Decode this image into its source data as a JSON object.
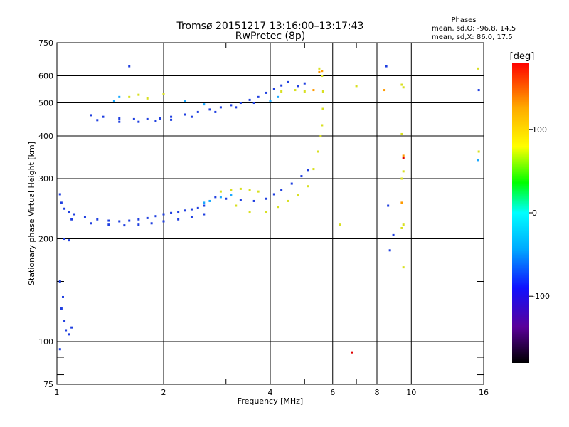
{
  "header": {
    "title_line1": "Tromsø 20151217 13:16:00–13:17:43",
    "title_line2": "RwPretec (8p)"
  },
  "stats": {
    "heading": "Phases",
    "line_o": "mean, sd,O: -96.8, 14.5",
    "line_x": "mean, sd,X: 86.0, 17.5"
  },
  "chart_data": {
    "type": "scatter",
    "xlabel": "Frequency [MHz]",
    "ylabel": "Stationary phase Virtual Height [km]",
    "x_scale": "log",
    "y_scale": "log",
    "xlim": [
      1,
      16
    ],
    "ylim": [
      75,
      750
    ],
    "x_ticks": [
      1,
      2,
      4,
      6,
      8,
      10,
      16
    ],
    "x_tick_labels": [
      "1",
      "2",
      "4",
      "6",
      "8",
      "10",
      "16"
    ],
    "x_minor_ticks": [
      3,
      5,
      7,
      9
    ],
    "y_ticks": [
      75,
      100,
      200,
      300,
      400,
      500,
      600,
      750
    ],
    "y_tick_labels": [
      "75",
      "100",
      "200",
      "300",
      "400",
      "500",
      "600",
      "750"
    ],
    "y_minor_ticks": [
      80,
      90,
      150
    ],
    "grid": true,
    "colorbar": {
      "label": "[deg]",
      "range": [
        -180,
        180
      ],
      "ticks": [
        -100,
        0,
        100
      ],
      "tick_labels": [
        "-100",
        "0",
        "100"
      ],
      "colors": [
        "#000000",
        "#5a009a",
        "#1010ff",
        "#00aaff",
        "#00ffff",
        "#00ff00",
        "#ffff00",
        "#ffaa00",
        "#ff0000"
      ]
    },
    "series": [
      {
        "color": "#1f3fe0",
        "points": [
          [
            1.02,
            270
          ],
          [
            1.03,
            255
          ],
          [
            1.05,
            245
          ],
          [
            1.08,
            240
          ],
          [
            1.12,
            236
          ],
          [
            1.2,
            232
          ],
          [
            1.3,
            228
          ],
          [
            1.4,
            226
          ],
          [
            1.5,
            225
          ],
          [
            1.6,
            226
          ],
          [
            1.7,
            228
          ],
          [
            1.8,
            230
          ],
          [
            1.9,
            233
          ],
          [
            2.0,
            236
          ],
          [
            2.1,
            238
          ],
          [
            2.2,
            240
          ],
          [
            2.3,
            242
          ],
          [
            2.4,
            244
          ],
          [
            2.5,
            246
          ],
          [
            2.6,
            250
          ],
          [
            1.1,
            228
          ],
          [
            1.25,
            222
          ],
          [
            1.4,
            220
          ],
          [
            1.55,
            219
          ],
          [
            1.7,
            220
          ],
          [
            1.85,
            222
          ],
          [
            2.0,
            225
          ],
          [
            2.2,
            228
          ],
          [
            2.4,
            232
          ],
          [
            2.6,
            236
          ],
          [
            2.8,
            265
          ],
          [
            3.0,
            262
          ],
          [
            3.3,
            260
          ],
          [
            3.6,
            258
          ],
          [
            3.9,
            262
          ],
          [
            4.1,
            270
          ],
          [
            4.3,
            278
          ],
          [
            4.6,
            290
          ],
          [
            4.9,
            305
          ],
          [
            5.1,
            318
          ],
          [
            1.25,
            460
          ],
          [
            1.35,
            455
          ],
          [
            1.5,
            450
          ],
          [
            1.65,
            448
          ],
          [
            1.8,
            448
          ],
          [
            1.95,
            450
          ],
          [
            2.1,
            455
          ],
          [
            2.3,
            462
          ],
          [
            2.5,
            470
          ],
          [
            2.7,
            478
          ],
          [
            2.9,
            485
          ],
          [
            3.1,
            492
          ],
          [
            3.3,
            500
          ],
          [
            3.5,
            510
          ],
          [
            3.7,
            520
          ],
          [
            3.9,
            535
          ],
          [
            4.1,
            550
          ],
          [
            4.3,
            562
          ],
          [
            4.5,
            575
          ],
          [
            4.8,
            560
          ],
          [
            5.0,
            570
          ],
          [
            1.3,
            445
          ],
          [
            1.5,
            440
          ],
          [
            1.7,
            440
          ],
          [
            1.9,
            442
          ],
          [
            2.1,
            446
          ],
          [
            2.4,
            455
          ],
          [
            2.8,
            470
          ],
          [
            3.2,
            485
          ],
          [
            3.6,
            500
          ],
          [
            1.03,
            125
          ],
          [
            1.05,
            115
          ],
          [
            1.06,
            108
          ],
          [
            1.08,
            105
          ],
          [
            1.1,
            110
          ],
          [
            1.04,
            135
          ],
          [
            1.02,
            150
          ],
          [
            1.05,
            200
          ],
          [
            1.08,
            198
          ],
          [
            1.02,
            95
          ],
          [
            1.6,
            640
          ],
          [
            8.5,
            640
          ],
          [
            8.6,
            250
          ],
          [
            8.7,
            185
          ],
          [
            8.9,
            205
          ],
          [
            15.5,
            545
          ]
        ]
      },
      {
        "color": "#19a8ff",
        "points": [
          [
            2.6,
            255
          ],
          [
            2.7,
            258
          ],
          [
            2.9,
            265
          ],
          [
            3.1,
            268
          ],
          [
            4.0,
            505
          ],
          [
            4.2,
            520
          ],
          [
            2.3,
            505
          ],
          [
            2.6,
            495
          ],
          [
            1.5,
            520
          ],
          [
            1.45,
            505
          ],
          [
            15.4,
            340
          ]
        ]
      },
      {
        "color": "#d8e020",
        "points": [
          [
            2.9,
            275
          ],
          [
            3.1,
            278
          ],
          [
            3.3,
            280
          ],
          [
            3.5,
            278
          ],
          [
            3.7,
            275
          ],
          [
            3.2,
            250
          ],
          [
            3.5,
            240
          ],
          [
            3.9,
            240
          ],
          [
            4.2,
            248
          ],
          [
            4.5,
            258
          ],
          [
            4.8,
            268
          ],
          [
            5.1,
            285
          ],
          [
            5.3,
            320
          ],
          [
            5.45,
            360
          ],
          [
            5.55,
            400
          ],
          [
            5.6,
            430
          ],
          [
            5.63,
            480
          ],
          [
            5.64,
            540
          ],
          [
            5.6,
            600
          ],
          [
            5.5,
            630
          ],
          [
            4.7,
            545
          ],
          [
            5.0,
            540
          ],
          [
            4.3,
            540
          ],
          [
            1.6,
            520
          ],
          [
            1.7,
            528
          ],
          [
            1.8,
            515
          ],
          [
            9.4,
            565
          ],
          [
            9.5,
            555
          ],
          [
            9.4,
            405
          ],
          [
            9.5,
            315
          ],
          [
            9.4,
            300
          ],
          [
            9.5,
            220
          ],
          [
            9.4,
            215
          ],
          [
            9.5,
            165
          ],
          [
            15.5,
            360
          ],
          [
            15.4,
            630
          ],
          [
            7.0,
            560
          ],
          [
            6.3,
            220
          ],
          [
            2.0,
            530
          ]
        ]
      },
      {
        "color": "#ff9a00",
        "points": [
          [
            5.3,
            545
          ],
          [
            5.5,
            615
          ],
          [
            5.6,
            620
          ],
          [
            9.5,
            350
          ],
          [
            9.4,
            255
          ],
          [
            8.4,
            545
          ]
        ]
      },
      {
        "color": "#e00000",
        "points": [
          [
            6.8,
            93
          ],
          [
            9.5,
            345
          ]
        ]
      }
    ]
  }
}
